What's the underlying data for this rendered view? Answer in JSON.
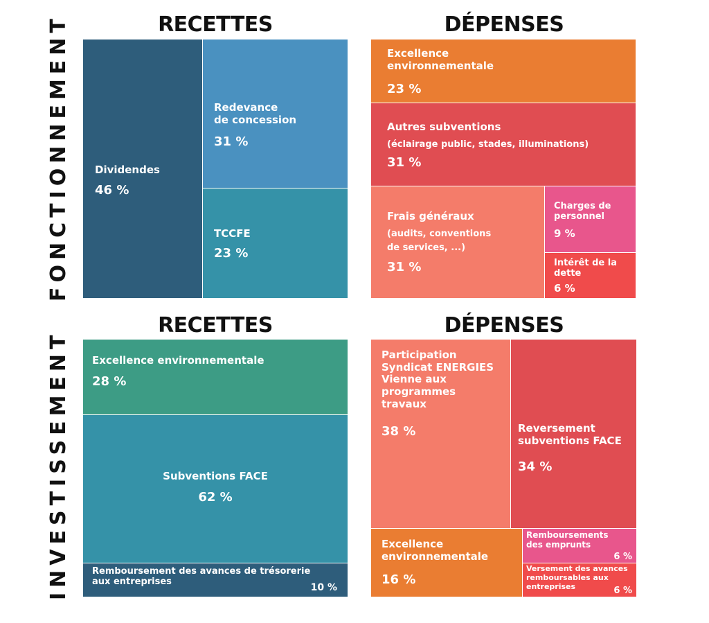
{
  "sections": {
    "fonctionnement": "FONCTIONNEMENT",
    "investissement": "INVESTISSEMENT"
  },
  "headings": {
    "recettes_top": "RECETTES",
    "depenses_top": "DÉPENSES",
    "recettes_bottom": "RECETTES",
    "depenses_bottom": "DÉPENSES"
  },
  "chart_data": [
    {
      "type": "treemap",
      "section": "FONCTIONNEMENT",
      "title": "RECETTES",
      "items": [
        {
          "label": "Dividendes",
          "value": 46,
          "value_label": "46 %",
          "color": "#2e5d7b"
        },
        {
          "label": "Redevance de concession",
          "value": 31,
          "value_label": "31 %",
          "color": "#4a91c0"
        },
        {
          "label": "TCCFE",
          "value": 23,
          "value_label": "23 %",
          "color": "#3592a8"
        }
      ]
    },
    {
      "type": "treemap",
      "section": "FONCTIONNEMENT",
      "title": "DÉPENSES",
      "items": [
        {
          "label": "Excellence environnementale",
          "value": 23,
          "value_label": "23 %",
          "color": "#ea7d32"
        },
        {
          "label": "Autres subventions",
          "sublabel": "(éclairage public, stades, illuminations)",
          "value": 31,
          "value_label": "31 %",
          "color": "#e04d52"
        },
        {
          "label": "Frais généraux",
          "sublabel": "(audits, conventions de services, ...)",
          "value": 31,
          "value_label": "31 %",
          "color": "#f47c6a"
        },
        {
          "label": "Charges de personnel",
          "value": 9,
          "value_label": "9 %",
          "color": "#e8568c"
        },
        {
          "label": "Intérêt de la dette",
          "value": 6,
          "value_label": "6 %",
          "color": "#f04b4b"
        }
      ]
    },
    {
      "type": "treemap",
      "section": "INVESTISSEMENT",
      "title": "RECETTES",
      "items": [
        {
          "label": "Excellence environnementale",
          "value": 28,
          "value_label": "28 %",
          "color": "#3d9c85"
        },
        {
          "label": "Subventions FACE",
          "value": 62,
          "value_label": "62 %",
          "color": "#3592a8"
        },
        {
          "label": "Remboursement des avances de trésorerie aux entreprises",
          "value": 10,
          "value_label": "10 %",
          "color": "#2e5d7b"
        }
      ]
    },
    {
      "type": "treemap",
      "section": "INVESTISSEMENT",
      "title": "DÉPENSES",
      "items": [
        {
          "label": "Participation Syndicat ENERGIES Vienne aux programmes travaux",
          "value": 38,
          "value_label": "38 %",
          "color": "#f47c6a"
        },
        {
          "label": "Reversement subventions FACE",
          "value": 34,
          "value_label": "34 %",
          "color": "#e04d52"
        },
        {
          "label": "Excellence environnementale",
          "value": 16,
          "value_label": "16 %",
          "color": "#ea7d32"
        },
        {
          "label": "Remboursements des emprunts",
          "value": 6,
          "value_label": "6 %",
          "color": "#e8568c"
        },
        {
          "label": "Versement des avances remboursables aux entreprises",
          "value": 6,
          "value_label": "6 %",
          "color": "#f04b4b"
        }
      ]
    }
  ]
}
